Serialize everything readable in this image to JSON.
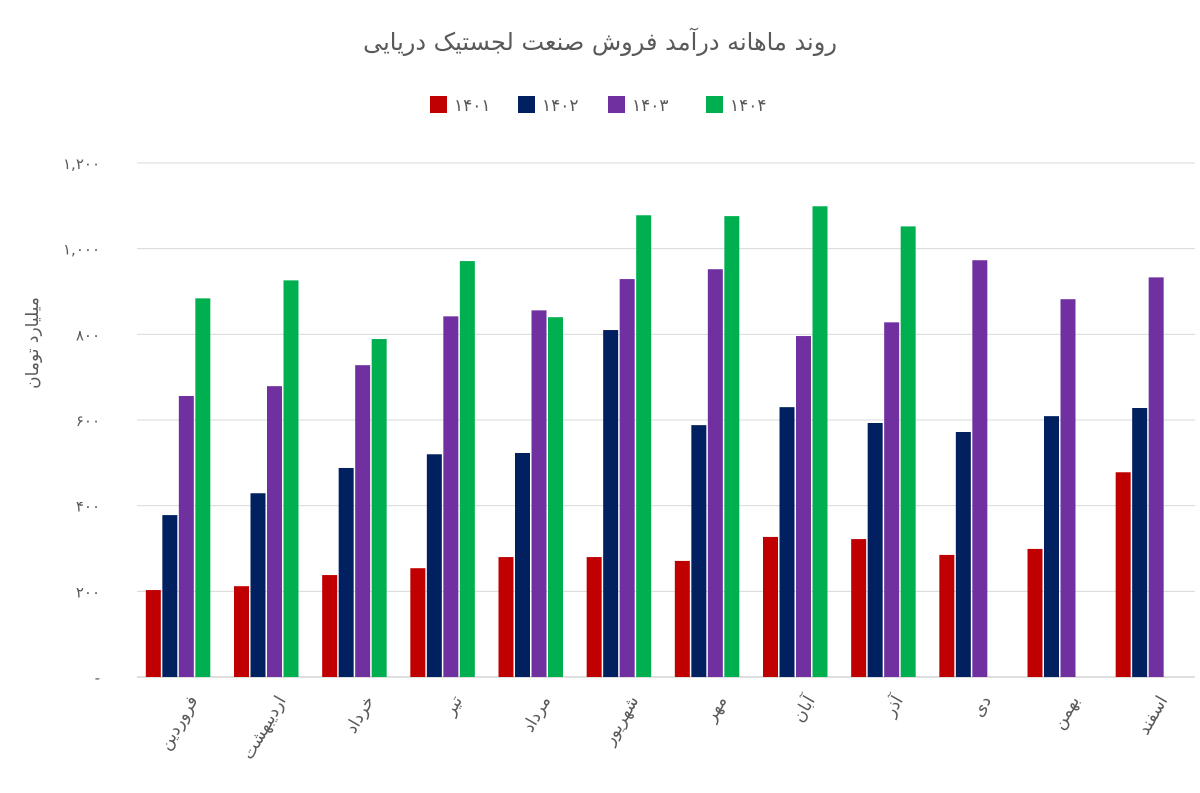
{
  "chart_data": {
    "type": "bar",
    "title": "روند ماهانه درآمد فروش صنعت لجستیک دریایی",
    "ylabel": "میلیارد تومان",
    "xlabel": "",
    "ylim": [
      0,
      1200
    ],
    "yticks": [
      0,
      200,
      400,
      600,
      800,
      1000,
      1200
    ],
    "ytick_labels": [
      "-",
      "۲۰۰",
      "۴۰۰",
      "۶۰۰",
      "۸۰۰",
      "۱,۰۰۰",
      "۱,۲۰۰"
    ],
    "grid": true,
    "legend": "top",
    "categories": [
      "فروردین",
      "اردیبهشت",
      "خرداد",
      "تیر",
      "مرداد",
      "شهریور",
      "مهر",
      "آبان",
      "آذر",
      "دی",
      "بهمن",
      "اسفند"
    ],
    "series": [
      {
        "name": "۱۴۰۱",
        "color": "#c00000",
        "values": [
          203,
          212,
          238,
          254,
          280,
          280,
          271,
          327,
          322,
          285,
          299,
          478
        ]
      },
      {
        "name": "۱۴۰۲",
        "color": "#002060",
        "values": [
          378,
          429,
          488,
          520,
          523,
          810,
          588,
          630,
          593,
          572,
          609,
          628
        ]
      },
      {
        "name": "۱۴۰۳",
        "color": "#7030a0",
        "values": [
          656,
          679,
          728,
          842,
          856,
          929,
          952,
          796,
          828,
          973,
          882,
          933
        ]
      },
      {
        "name": "۱۴۰۴",
        "color": "#00b050",
        "values": [
          884,
          926,
          789,
          971,
          840,
          1078,
          1076,
          1099,
          1052,
          null,
          null,
          null
        ]
      }
    ]
  }
}
